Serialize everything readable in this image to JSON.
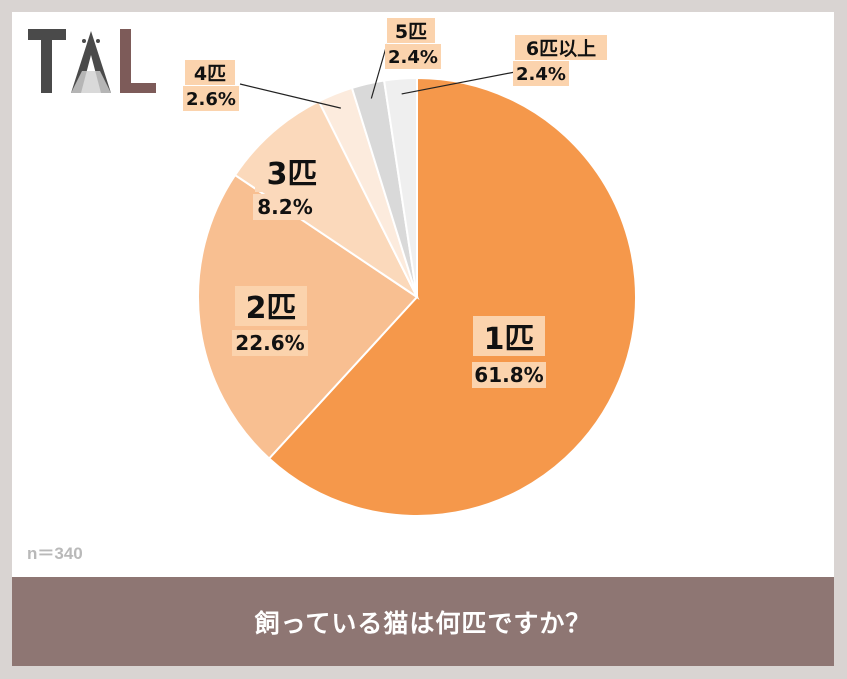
{
  "logo": {
    "text": "TAL"
  },
  "footnote": "n＝340",
  "caption": "飼っている猫は何匹ですか？",
  "colors": {
    "background": "#d9d4d2",
    "caption_bar": "#8e7673",
    "slice_1": "#f5984b",
    "slice_2": "#f8bf91",
    "slice_3": "#fbd9bb",
    "slice_4": "#fcebdd",
    "slice_5": "#d9d9d9",
    "slice_6": "#efefef",
    "label_bg": "#fbd3ad"
  },
  "chart_data": {
    "type": "pie",
    "title": "",
    "categories": [
      "1匹",
      "2匹",
      "3匹",
      "4匹",
      "5匹",
      "6匹以上"
    ],
    "values": [
      61.8,
      22.6,
      8.2,
      2.6,
      2.4,
      2.4
    ],
    "value_labels": [
      "61.8%",
      "22.6%",
      "8.2%",
      "2.6%",
      "2.4%",
      "2.4%"
    ],
    "start": "12 o'clock",
    "direction": "clockwise",
    "legend": "none"
  }
}
